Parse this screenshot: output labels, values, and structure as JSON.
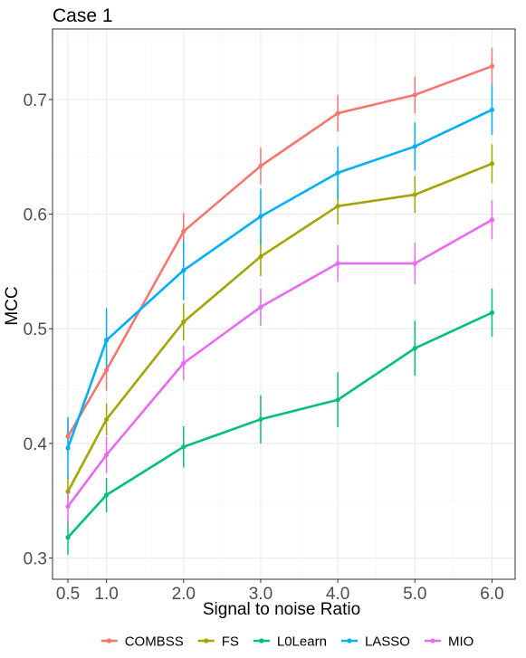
{
  "chart_data": {
    "type": "line",
    "title": "Case 1",
    "xlabel": "Signal to noise Ratio",
    "ylabel": "MCC",
    "x": [
      0.5,
      1.0,
      2.0,
      3.0,
      4.0,
      5.0,
      6.0
    ],
    "x_tick_labels": [
      "0.5",
      "1.0",
      "2.0",
      "3.0",
      "4.0",
      "5.0",
      "6.0"
    ],
    "y_ticks": [
      0.3,
      0.4,
      0.5,
      0.6,
      0.7
    ],
    "y_tick_labels": [
      "0.3",
      "0.4",
      "0.5",
      "0.6",
      "0.7"
    ],
    "xlim": [
      0.3,
      6.3
    ],
    "ylim": [
      0.2815,
      0.7615
    ],
    "grid": true,
    "legend_position": "bottom",
    "series": [
      {
        "name": "COMBSS",
        "color": "#F8766D",
        "values": [
          0.406,
          0.464,
          0.585,
          0.642,
          0.688,
          0.704,
          0.729
        ],
        "err": [
          0.014,
          0.018,
          0.016,
          0.016,
          0.016,
          0.016,
          0.016
        ]
      },
      {
        "name": "FS",
        "color": "#A3A500",
        "values": [
          0.358,
          0.421,
          0.506,
          0.563,
          0.607,
          0.617,
          0.644
        ],
        "err": [
          0.014,
          0.014,
          0.016,
          0.017,
          0.016,
          0.016,
          0.017
        ]
      },
      {
        "name": "L0Learn",
        "color": "#00BF7D",
        "values": [
          0.318,
          0.355,
          0.397,
          0.421,
          0.438,
          0.483,
          0.514
        ],
        "err": [
          0.015,
          0.015,
          0.018,
          0.021,
          0.024,
          0.024,
          0.021
        ]
      },
      {
        "name": "LASSO",
        "color": "#00B0F6",
        "values": [
          0.396,
          0.49,
          0.551,
          0.598,
          0.636,
          0.659,
          0.691
        ],
        "err": [
          0.027,
          0.028,
          0.026,
          0.024,
          0.023,
          0.021,
          0.022
        ]
      },
      {
        "name": "MIO",
        "color": "#E76BF3",
        "values": [
          0.345,
          0.39,
          0.47,
          0.519,
          0.557,
          0.557,
          0.595
        ],
        "err": [
          0.016,
          0.016,
          0.015,
          0.016,
          0.016,
          0.018,
          0.017
        ]
      }
    ]
  }
}
